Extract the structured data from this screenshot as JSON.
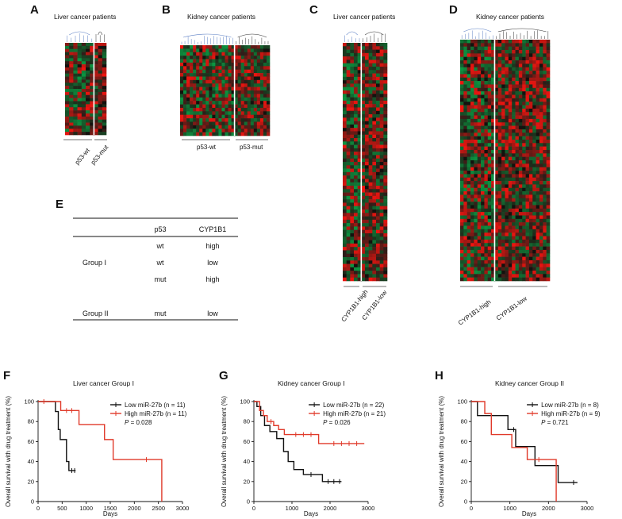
{
  "panels": {
    "A": {
      "label": "A",
      "title": "Liver cancer patients",
      "groups": [
        "p53-wt",
        "p53-mut"
      ]
    },
    "B": {
      "label": "B",
      "title": "Kidney cancer patients",
      "groups": [
        "p53-wt",
        "p53-mut"
      ]
    },
    "C": {
      "label": "C",
      "title": "Liver cancer patients",
      "groups": [
        "CYP1B1-high",
        "CYP1B1-low"
      ]
    },
    "D": {
      "label": "D",
      "title": "Kidney cancer patients",
      "groups": [
        "CYP1B1-high",
        "CYP1B1-low"
      ]
    }
  },
  "table": {
    "label": "E",
    "headers": [
      "p53",
      "CYP1B1"
    ],
    "rows": [
      {
        "group": "",
        "p53": "wt",
        "cyp": "high"
      },
      {
        "group": "Group I",
        "p53": "wt",
        "cyp": "low"
      },
      {
        "group": "",
        "p53": "mut",
        "cyp": "high"
      },
      {
        "group": "Group II",
        "p53": "mut",
        "cyp": "low"
      }
    ]
  },
  "colors": {
    "black": "#111111",
    "red": "#e03a2a",
    "green": "#1a8a3c",
    "heat_red": "#e0231f",
    "dend_blue": "#5b7fc4"
  },
  "chart_data": [
    {
      "type": "line",
      "label": "F",
      "title": "Liver cancer Group I",
      "xlabel": "Days",
      "ylabel": "Overall survival with drug treatment (%)",
      "xlim": [
        0,
        3000
      ],
      "ylim": [
        0,
        100
      ],
      "xticks": [
        0,
        500,
        1000,
        1500,
        2000,
        2500,
        3000
      ],
      "yticks": [
        0,
        20,
        40,
        60,
        80,
        100
      ],
      "legend": {
        "position": "top-right",
        "p_label": "P",
        "p_value": "= 0.028"
      },
      "series": [
        {
          "name": "Low miR-27b",
          "n_text": "(n = 11)",
          "color": "#111111",
          "steps": [
            [
              0,
              100
            ],
            [
              360,
              100
            ],
            [
              360,
              90
            ],
            [
              420,
              90
            ],
            [
              420,
              72
            ],
            [
              460,
              72
            ],
            [
              460,
              62
            ],
            [
              590,
              62
            ],
            [
              590,
              40
            ],
            [
              640,
              40
            ],
            [
              640,
              31
            ],
            [
              780,
              31
            ]
          ],
          "censors": [
            [
              700,
              31
            ],
            [
              760,
              31
            ]
          ]
        },
        {
          "name": "High miR-27b",
          "n_text": "(n = 11)",
          "color": "#e03a2a",
          "steps": [
            [
              0,
              100
            ],
            [
              470,
              100
            ],
            [
              470,
              91
            ],
            [
              850,
              91
            ],
            [
              850,
              77
            ],
            [
              1380,
              77
            ],
            [
              1380,
              62
            ],
            [
              1560,
              62
            ],
            [
              1560,
              42
            ],
            [
              2570,
              42
            ],
            [
              2570,
              0
            ]
          ],
          "censors": [
            [
              120,
              100
            ],
            [
              590,
              91
            ],
            [
              700,
              91
            ],
            [
              2250,
              42
            ]
          ]
        }
      ]
    },
    {
      "type": "line",
      "label": "G",
      "title": "Kidney cancer Group I",
      "xlabel": "Days",
      "ylabel": "Overall survival with drug treatment (%)",
      "xlim": [
        0,
        3000
      ],
      "ylim": [
        0,
        100
      ],
      "xticks": [
        0,
        1000,
        2000,
        3000
      ],
      "yticks": [
        0,
        20,
        40,
        60,
        80,
        100
      ],
      "legend": {
        "position": "top-right",
        "p_label": "P",
        "p_value": "= 0.026"
      },
      "series": [
        {
          "name": "Low miR-27b",
          "n_text": "(n = 22)",
          "color": "#111111",
          "steps": [
            [
              0,
              100
            ],
            [
              80,
              100
            ],
            [
              80,
              95
            ],
            [
              180,
              95
            ],
            [
              180,
              86
            ],
            [
              280,
              86
            ],
            [
              280,
              76
            ],
            [
              420,
              76
            ],
            [
              420,
              70
            ],
            [
              600,
              70
            ],
            [
              600,
              63
            ],
            [
              780,
              63
            ],
            [
              780,
              50
            ],
            [
              900,
              50
            ],
            [
              900,
              40
            ],
            [
              1050,
              40
            ],
            [
              1050,
              32
            ],
            [
              1300,
              32
            ],
            [
              1300,
              27
            ],
            [
              1800,
              27
            ],
            [
              1800,
              20
            ],
            [
              2300,
              20
            ]
          ],
          "censors": [
            [
              1500,
              27
            ],
            [
              1950,
              20
            ],
            [
              2100,
              20
            ],
            [
              2250,
              20
            ]
          ]
        },
        {
          "name": "High miR-27b",
          "n_text": "(n = 21)",
          "color": "#e03a2a",
          "steps": [
            [
              0,
              100
            ],
            [
              150,
              100
            ],
            [
              150,
              91
            ],
            [
              250,
              91
            ],
            [
              250,
              86
            ],
            [
              350,
              86
            ],
            [
              350,
              80
            ],
            [
              520,
              80
            ],
            [
              520,
              76
            ],
            [
              650,
              76
            ],
            [
              650,
              72
            ],
            [
              800,
              72
            ],
            [
              800,
              67
            ],
            [
              1700,
              67
            ],
            [
              1700,
              58
            ],
            [
              2900,
              58
            ]
          ],
          "censors": [
            [
              450,
              80
            ],
            [
              1100,
              67
            ],
            [
              1300,
              67
            ],
            [
              1500,
              67
            ],
            [
              2100,
              58
            ],
            [
              2300,
              58
            ],
            [
              2500,
              58
            ],
            [
              2700,
              58
            ]
          ]
        }
      ]
    },
    {
      "type": "line",
      "label": "H",
      "title": "Kidney cancer Group II",
      "xlabel": "Days",
      "ylabel": "Overall survival with drug treatment (%)",
      "xlim": [
        0,
        3000
      ],
      "ylim": [
        0,
        100
      ],
      "xticks": [
        0,
        1000,
        2000,
        3000
      ],
      "yticks": [
        0,
        20,
        40,
        60,
        80,
        100
      ],
      "legend": {
        "position": "top-right",
        "p_label": "P",
        "p_value": "= 0.721"
      },
      "series": [
        {
          "name": "Low miR-27b",
          "n_text": "(n = 8)",
          "color": "#111111",
          "steps": [
            [
              0,
              100
            ],
            [
              160,
              100
            ],
            [
              160,
              86
            ],
            [
              950,
              86
            ],
            [
              950,
              72
            ],
            [
              1150,
              72
            ],
            [
              1150,
              55
            ],
            [
              1650,
              55
            ],
            [
              1650,
              36
            ],
            [
              2250,
              36
            ],
            [
              2250,
              19
            ],
            [
              2750,
              19
            ]
          ],
          "censors": [
            [
              1100,
              72
            ],
            [
              2650,
              19
            ]
          ]
        },
        {
          "name": "High miR-27b",
          "n_text": "(n = 9)",
          "color": "#e03a2a",
          "steps": [
            [
              0,
              100
            ],
            [
              350,
              100
            ],
            [
              350,
              88
            ],
            [
              520,
              88
            ],
            [
              520,
              67
            ],
            [
              1050,
              67
            ],
            [
              1050,
              54
            ],
            [
              1450,
              54
            ],
            [
              1450,
              42
            ],
            [
              2200,
              42
            ],
            [
              2200,
              0
            ]
          ],
          "censors": [
            [
              1750,
              42
            ]
          ]
        }
      ]
    }
  ]
}
